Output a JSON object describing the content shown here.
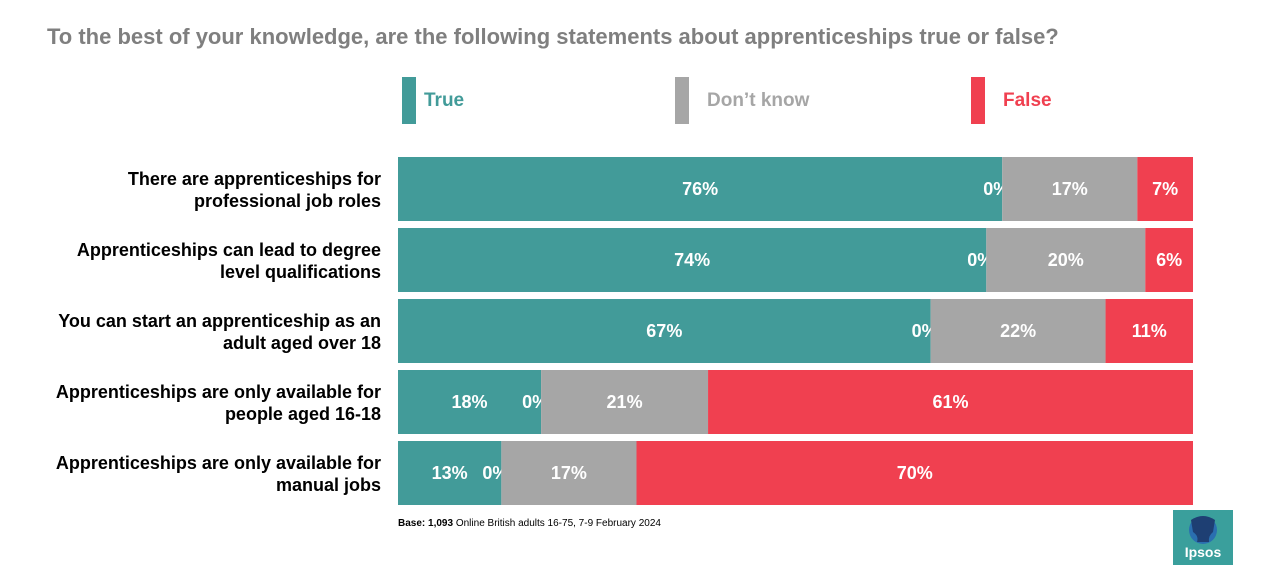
{
  "chart_data": {
    "type": "bar",
    "orientation": "horizontal-stacked-100",
    "title": "To the best of your knowledge, are the following statements about apprenticeships true or false?",
    "legend_position": "top",
    "grid": false,
    "categories": [
      [
        "There are apprenticeships for",
        "professional job roles"
      ],
      [
        "Apprenticeships can lead to degree",
        "level qualifications"
      ],
      [
        "You can start an apprenticeship as an",
        "adult aged over 18"
      ],
      [
        "Apprenticeships are only available for",
        "people aged 16-18"
      ],
      [
        "Apprenticeships are only available for",
        "manual jobs"
      ]
    ],
    "series": [
      {
        "name": "True",
        "color": "#429b99",
        "values": [
          76,
          74,
          67,
          18,
          13
        ]
      },
      {
        "name": "",
        "color": "#429b99",
        "values": [
          0,
          0,
          0,
          0,
          0
        ]
      },
      {
        "name": "Don’t know",
        "color": "#a6a6a6",
        "values": [
          17,
          20,
          22,
          21,
          17
        ]
      },
      {
        "name": "False",
        "color": "#f04050",
        "values": [
          7,
          6,
          11,
          61,
          70
        ]
      }
    ],
    "value_suffix": "%",
    "xlim": [
      0,
      100
    ]
  },
  "footnote": {
    "bold": "Base:",
    "bold_count": "1,093",
    "text": "Online British adults 16-75, 7-9 February 2024"
  },
  "logo": {
    "text": "Ipsos",
    "color": "#3a9f9c"
  }
}
